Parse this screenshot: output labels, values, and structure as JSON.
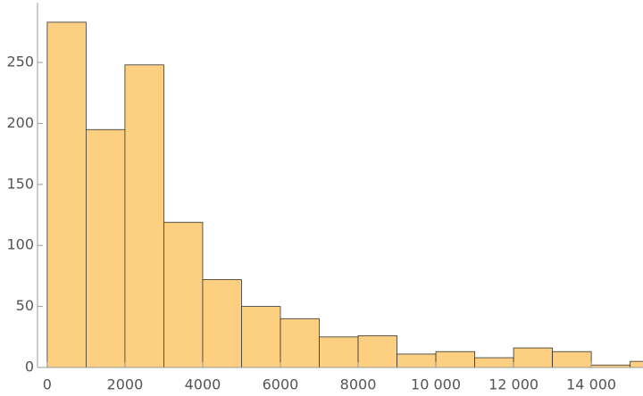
{
  "chart_data": {
    "type": "histogram",
    "bins": [
      0,
      1000,
      2000,
      3000,
      4000,
      5000,
      6000,
      7000,
      8000,
      9000,
      10000,
      11000,
      12000,
      13000,
      14000,
      15000,
      16000
    ],
    "counts": [
      283,
      195,
      248,
      119,
      72,
      50,
      40,
      25,
      26,
      11,
      13,
      8,
      16,
      13,
      2,
      5
    ],
    "color": "#fdd081",
    "edge_color": "#333333",
    "xlim": [
      -250,
      15330
    ],
    "ylim": [
      0,
      299
    ],
    "xticks": [
      0,
      2000,
      4000,
      6000,
      8000,
      {
        "value": 10000,
        "label": "10 000"
      },
      {
        "value": 12000,
        "label": "12 000"
      },
      {
        "value": 14000,
        "label": "14 000"
      }
    ],
    "yticks": [
      0,
      50,
      100,
      150,
      200,
      250
    ]
  }
}
